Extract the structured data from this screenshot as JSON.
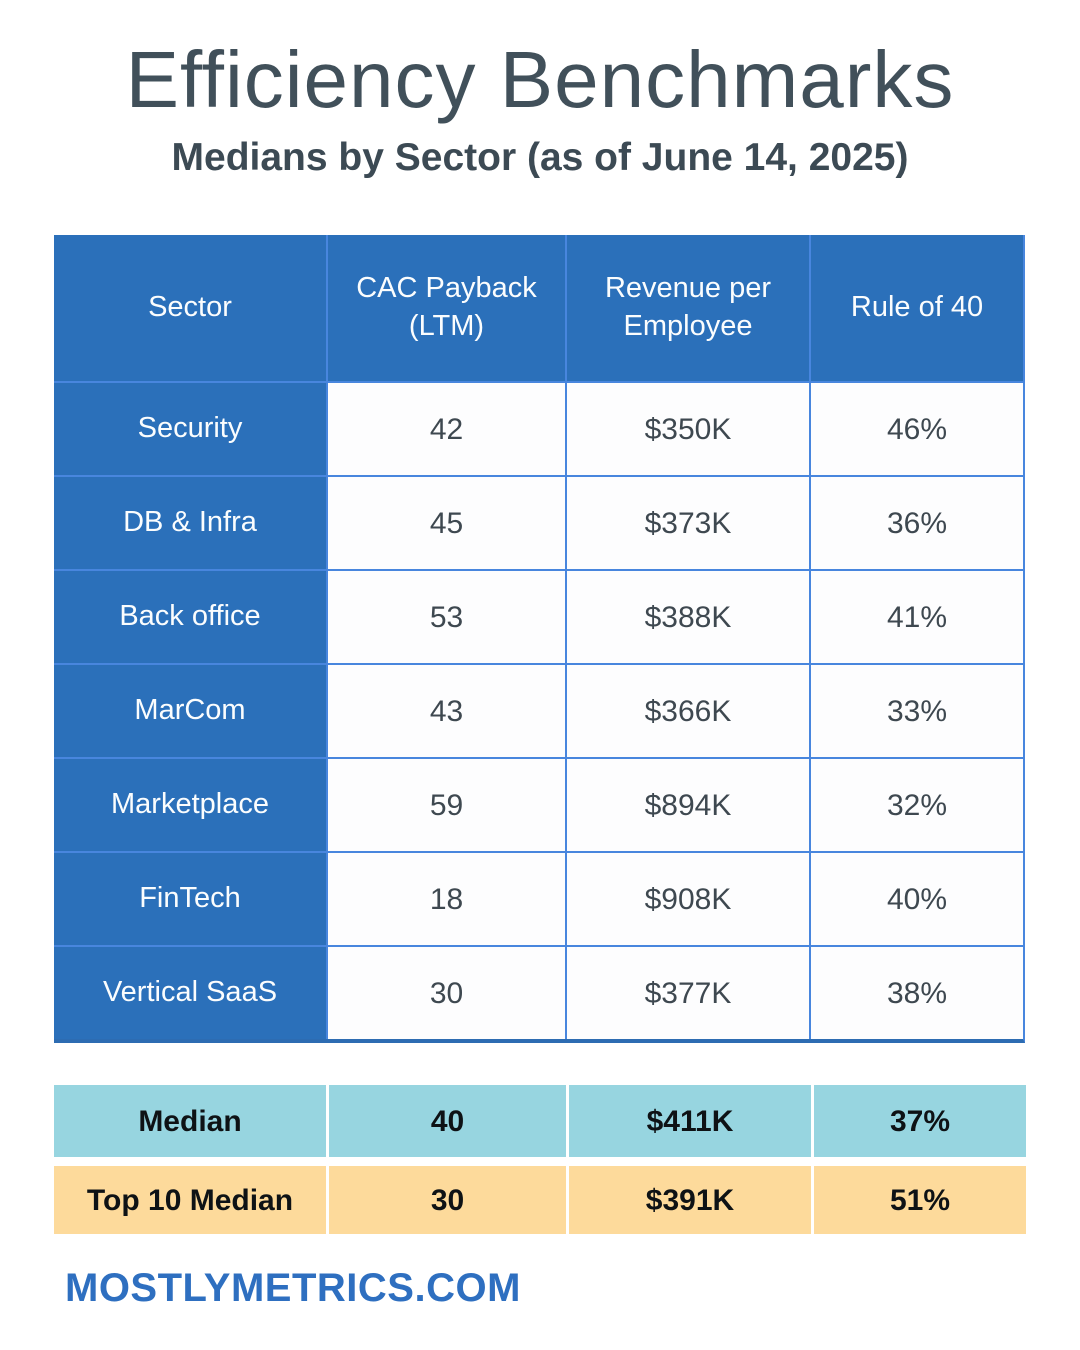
{
  "title": "Efficiency Benchmarks",
  "subtitle": "Medians by Sector (as of June 14, 2025)",
  "chart_data": {
    "type": "table",
    "title": "Efficiency Benchmarks",
    "subtitle": "Medians by Sector (as of June 14, 2025)",
    "columns": [
      "Sector",
      "CAC Payback (LTM)",
      "Revenue per Employee",
      "Rule of 40"
    ],
    "rows": [
      [
        "Security",
        "42",
        "$350K",
        "46%"
      ],
      [
        "DB & Infra",
        "45",
        "$373K",
        "36%"
      ],
      [
        "Back office",
        "53",
        "$388K",
        "41%"
      ],
      [
        "MarCom",
        "43",
        "$366K",
        "33%"
      ],
      [
        "Marketplace",
        "59",
        "$894K",
        "32%"
      ],
      [
        "FinTech",
        "18",
        "$908K",
        "40%"
      ],
      [
        "Vertical SaaS",
        "30",
        "$377K",
        "38%"
      ]
    ],
    "summary_rows": [
      [
        "Median",
        "40",
        "$411K",
        "37%"
      ],
      [
        "Top 10 Median",
        "30",
        "$391K",
        "51%"
      ]
    ]
  },
  "footer": {
    "website": "MOSTLYMETRICS.COM"
  },
  "colors": {
    "header_blue": "#2b70ba",
    "cell_border_blue": "#4886de",
    "table_bottom_border": "#2d6cb2",
    "title_text": "#41505a",
    "value_text": "#3e4850",
    "median_row_bg": "#97d5e0",
    "top10_row_bg": "#fdda9b",
    "footer_link_blue": "#2e6fc0",
    "page_bg": "#ffffff"
  }
}
